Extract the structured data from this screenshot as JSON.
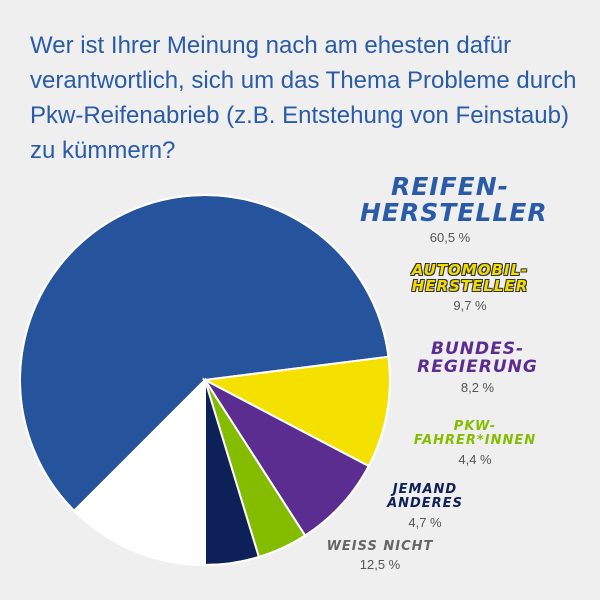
{
  "question": "Wer ist Ihrer Meinung nach am ehesten dafür verantwortlich, sich um das Thema Probleme durch Pkw-Reifenabrieb (z.B. Entstehung von Feinstaub) zu kümmern?",
  "chart_data": {
    "type": "pie",
    "title": "Wer ist Ihrer Meinung nach am ehesten dafür verantwortlich, sich um das Thema Probleme durch Pkw-Reifenabrieb (z.B. Entstehung von Feinstaub) zu kümmern?",
    "slices": [
      {
        "label_line1": "REIFEN-",
        "label_line2": "HERSTELLER",
        "value": 60.5,
        "value_label": "60,5 %",
        "color": "#26549c"
      },
      {
        "label_line1": "AUTOMOBIL-",
        "label_line2": "HERSTELLER",
        "value": 9.7,
        "value_label": "9,7 %",
        "color": "#f5e100"
      },
      {
        "label_line1": "BUNDES-",
        "label_line2": "REGIERUNG",
        "value": 8.2,
        "value_label": "8,2 %",
        "color": "#5c2d91"
      },
      {
        "label_line1": "PKW-",
        "label_line2": "FAHRER*INNEN",
        "value": 4.4,
        "value_label": "4,4 %",
        "color": "#84bd00"
      },
      {
        "label_line1": "JEMAND",
        "label_line2": "ANDERES",
        "value": 4.7,
        "value_label": "4,7 %",
        "color": "#0d2057"
      },
      {
        "label_line1": "WEISS NICHT",
        "label_line2": "",
        "value": 12.5,
        "value_label": "12,5 %",
        "color": "#ffffff"
      }
    ]
  }
}
